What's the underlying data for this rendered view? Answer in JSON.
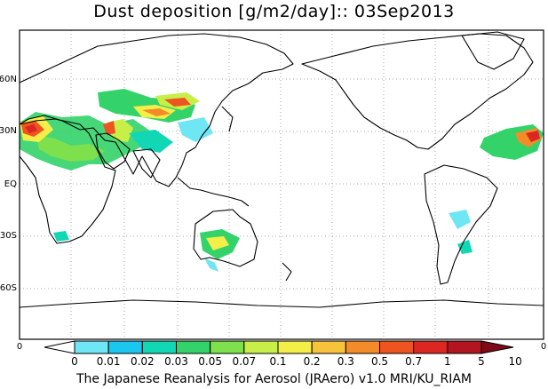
{
  "title": "Dust deposition [g/m2/day]:: 03Sep2013",
  "lat_labels": [
    "60N",
    "30N",
    "EQ",
    "30S",
    "60S"
  ],
  "lon_labels": {
    "left": "0",
    "right": "0"
  },
  "legend": {
    "colors": [
      "#ffffff",
      "#6fe6f4",
      "#1bc6ef",
      "#12d7b4",
      "#33d36a",
      "#7de04c",
      "#c7ef48",
      "#f4ee48",
      "#f6c33a",
      "#f38c28",
      "#ee5420",
      "#dc2622",
      "#b2151f",
      "#7f0a17"
    ],
    "labels": [
      "0",
      "0.01",
      "0.02",
      "0.03",
      "0.05",
      "0.07",
      "0.1",
      "0.2",
      "0.3",
      "0.5",
      "0.7",
      "1",
      "5",
      "10"
    ]
  },
  "footer": "The Japanese Reanalysis for Aerosol (JRAero) v1.0 MRI/KU_RIAM"
}
